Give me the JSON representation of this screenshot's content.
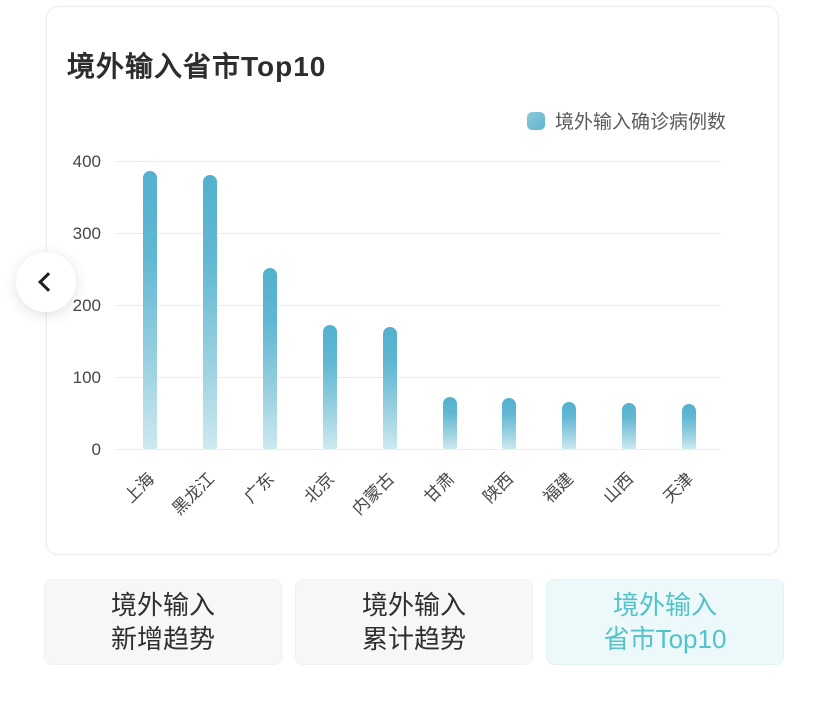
{
  "card": {
    "title": "境外输入省市Top10"
  },
  "legend": {
    "label": "境外输入确诊病例数",
    "swatch_color": "#6fbdd3"
  },
  "chart_data": {
    "type": "bar",
    "title": "境外输入省市Top10",
    "series_name": "境外输入确诊病例数",
    "categories": [
      "上海",
      "黑龙江",
      "广东",
      "北京",
      "内蒙古",
      "甘肃",
      "陕西",
      "福建",
      "山西",
      "天津"
    ],
    "values": [
      386,
      381,
      252,
      172,
      170,
      72,
      71,
      65,
      64,
      62
    ],
    "xlabel": "",
    "ylabel": "",
    "ylim": [
      0,
      400
    ],
    "y_ticks": [
      0,
      100,
      200,
      300,
      400
    ],
    "grid": true,
    "legend_position": "top-right",
    "bar_color_top": "#53b1ce",
    "bar_color_bottom": "#cde9f0",
    "x_label_rotation": -45
  },
  "carousel": {
    "prev_icon": "chevron-left"
  },
  "tabs": [
    {
      "line1": "境外输入",
      "line2": "新增趋势",
      "active": false
    },
    {
      "line1": "境外输入",
      "line2": "累计趋势",
      "active": false
    },
    {
      "line1": "境外输入",
      "line2": "省市Top10",
      "active": true
    }
  ],
  "colors": {
    "accent_teal": "#53c3c9",
    "active_tab_bg": "#ecf8f9",
    "inactive_tab_bg": "#f7f7f7",
    "gridline": "#ececec",
    "axis_text": "#464646",
    "title_text": "#2d2d2d"
  }
}
